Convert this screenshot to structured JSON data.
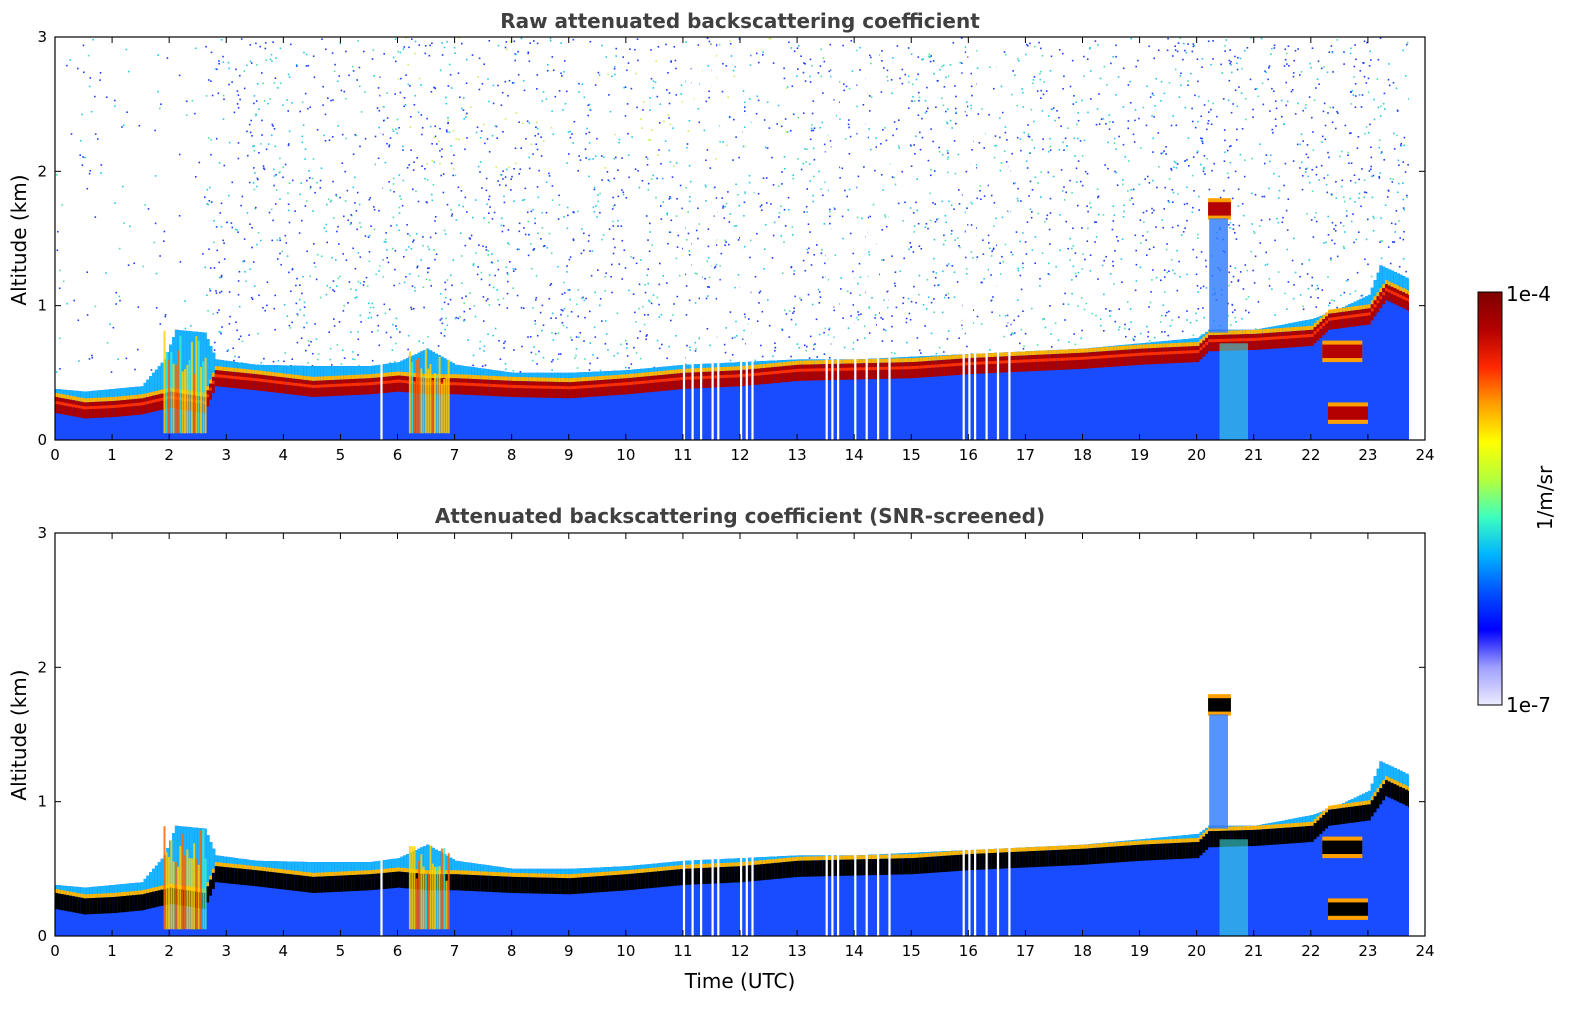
{
  "chart_data": [
    {
      "type": "heatmap",
      "title": "Raw attenuated backscattering coefficient",
      "xlabel": "",
      "ylabel": "Altitude (km)",
      "xlim": [
        0,
        24
      ],
      "ylim": [
        0,
        3
      ],
      "x_ticks": [
        "0",
        "1",
        "2",
        "3",
        "4",
        "5",
        "6",
        "7",
        "8",
        "9",
        "10",
        "11",
        "12",
        "13",
        "14",
        "15",
        "16",
        "17",
        "18",
        "19",
        "20",
        "21",
        "22",
        "23",
        "24"
      ],
      "y_ticks": [
        "0",
        "1",
        "2",
        "3"
      ],
      "screened": false,
      "layer_top_km": [
        [
          0.0,
          0.38
        ],
        [
          0.5,
          0.36
        ],
        [
          1.0,
          0.38
        ],
        [
          1.5,
          0.4
        ],
        [
          1.9,
          0.6
        ],
        [
          2.1,
          0.82
        ],
        [
          2.6,
          0.8
        ],
        [
          2.8,
          0.6
        ],
        [
          3.5,
          0.56
        ],
        [
          4.5,
          0.55
        ],
        [
          5.5,
          0.55
        ],
        [
          6.0,
          0.58
        ],
        [
          6.5,
          0.68
        ],
        [
          7.0,
          0.56
        ],
        [
          8.0,
          0.5
        ],
        [
          9.0,
          0.5
        ],
        [
          10.0,
          0.52
        ],
        [
          11.0,
          0.56
        ],
        [
          12.0,
          0.58
        ],
        [
          13.0,
          0.6
        ],
        [
          14.0,
          0.6
        ],
        [
          15.0,
          0.62
        ],
        [
          16.0,
          0.64
        ],
        [
          17.0,
          0.66
        ],
        [
          18.0,
          0.68
        ],
        [
          19.0,
          0.72
        ],
        [
          20.0,
          0.76
        ],
        [
          20.2,
          0.82
        ],
        [
          21.0,
          0.82
        ],
        [
          22.0,
          0.9
        ],
        [
          22.5,
          0.98
        ],
        [
          23.0,
          1.08
        ],
        [
          23.2,
          1.3
        ],
        [
          23.7,
          1.2
        ]
      ],
      "peak_km": [
        [
          0.0,
          0.26
        ],
        [
          0.5,
          0.22
        ],
        [
          1.0,
          0.23
        ],
        [
          1.5,
          0.25
        ],
        [
          2.0,
          0.3
        ],
        [
          2.6,
          0.26
        ],
        [
          2.8,
          0.46
        ],
        [
          3.5,
          0.43
        ],
        [
          4.5,
          0.38
        ],
        [
          5.5,
          0.4
        ],
        [
          6.0,
          0.42
        ],
        [
          6.5,
          0.4
        ],
        [
          7.0,
          0.4
        ],
        [
          8.0,
          0.38
        ],
        [
          9.0,
          0.37
        ],
        [
          10.0,
          0.4
        ],
        [
          11.0,
          0.44
        ],
        [
          12.0,
          0.46
        ],
        [
          13.0,
          0.5
        ],
        [
          14.0,
          0.51
        ],
        [
          15.0,
          0.52
        ],
        [
          16.0,
          0.55
        ],
        [
          17.0,
          0.57
        ],
        [
          18.0,
          0.59
        ],
        [
          19.0,
          0.62
        ],
        [
          20.0,
          0.64
        ],
        [
          20.2,
          0.72
        ],
        [
          21.0,
          0.73
        ],
        [
          22.0,
          0.76
        ],
        [
          22.3,
          0.88
        ],
        [
          23.0,
          0.92
        ],
        [
          23.3,
          1.1
        ],
        [
          23.7,
          1.02
        ]
      ],
      "elevated_layers": [
        {
          "t0": 20.2,
          "t1": 20.6,
          "z_km": 1.72,
          "label": "cloud"
        },
        {
          "t0": 22.2,
          "t1": 22.9,
          "z_km": 0.66,
          "label": "layer"
        },
        {
          "t0": 22.3,
          "t1": 23.0,
          "z_km": 0.2,
          "label": "layer"
        }
      ],
      "gaps_utc": [
        5.7,
        11.0,
        11.15,
        11.3,
        11.5,
        11.6,
        12.0,
        12.1,
        12.2,
        13.5,
        13.6,
        13.7,
        14.0,
        14.2,
        14.4,
        14.6,
        15.9,
        16.0,
        16.1,
        16.3,
        16.5,
        16.7
      ]
    },
    {
      "type": "heatmap",
      "title": "Attenuated backscattering coefficient (SNR-screened)",
      "xlabel": "Time (UTC)",
      "ylabel": "Altitude (km)",
      "xlim": [
        0,
        24
      ],
      "ylim": [
        0,
        3
      ],
      "x_ticks": [
        "0",
        "1",
        "2",
        "3",
        "4",
        "5",
        "6",
        "7",
        "8",
        "9",
        "10",
        "11",
        "12",
        "13",
        "14",
        "15",
        "16",
        "17",
        "18",
        "19",
        "20",
        "21",
        "22",
        "23",
        "24"
      ],
      "y_ticks": [
        "0",
        "1",
        "2",
        "3"
      ],
      "screened": true
    }
  ],
  "colorbar": {
    "max_label": "1e-4",
    "min_label": "1e-7",
    "unit_label": "1/m/sr",
    "scale": "log",
    "colors": [
      "#ececff",
      "#a0a0ff",
      "#0000ff",
      "#0050ff",
      "#00b4ff",
      "#3cffc0",
      "#b4ff3c",
      "#ffff00",
      "#ffa000",
      "#ff2800",
      "#b40000",
      "#7f0000"
    ]
  }
}
